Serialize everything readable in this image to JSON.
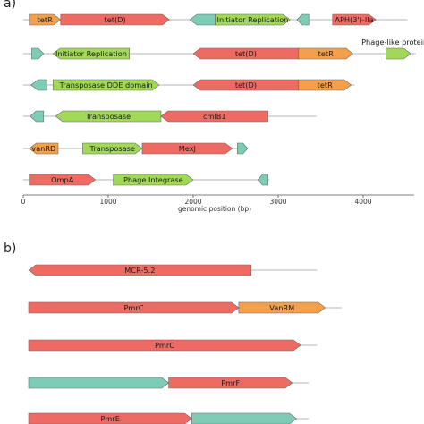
{
  "panels": [
    {
      "label": "a)"
    },
    {
      "label": "b)"
    }
  ],
  "axis": {
    "title": "genomic position (bp)",
    "ticks": [
      0,
      1000,
      2000,
      3000,
      4000
    ]
  },
  "colors": {
    "red": "#ee6b63",
    "orange": "#f4a04b",
    "lightgreen": "#a2d857",
    "teal": "#7dcdb6",
    "line": "#b5b5b5",
    "stroke": "#666666"
  },
  "tracks_a": [
    {
      "end": 4520,
      "genes": [
        {
          "start": 70,
          "end": 440,
          "strand": 1,
          "color": "orange",
          "label": "tetR"
        },
        {
          "start": 440,
          "end": 1720,
          "strand": 1,
          "color": "red",
          "label": "tet(D)"
        },
        {
          "start": 1960,
          "end": 2260,
          "strand": -1,
          "color": "teal",
          "label": ""
        },
        {
          "start": 2260,
          "end": 3140,
          "strand": 1,
          "color": "lightgreen",
          "label": "Initiator Replication"
        },
        {
          "start": 3220,
          "end": 3360,
          "strand": -1,
          "color": "teal",
          "label": ""
        },
        {
          "start": 3640,
          "end": 4150,
          "strand": 1,
          "color": "red",
          "label": "APH(3')-IIa"
        }
      ]
    },
    {
      "end": 4620,
      "genes": [
        {
          "start": 100,
          "end": 240,
          "strand": 1,
          "color": "teal",
          "label": ""
        },
        {
          "start": 350,
          "end": 1250,
          "strand": -1,
          "color": "lightgreen",
          "label": "Initiator Replication"
        },
        {
          "start": 2000,
          "end": 3240,
          "strand": -1,
          "color": "red",
          "label": "tet(D)"
        },
        {
          "start": 3240,
          "end": 3880,
          "strand": 1,
          "color": "orange",
          "label": "tetR"
        },
        {
          "start": 4270,
          "end": 4560,
          "strand": 1,
          "color": "lightgreen",
          "label": ""
        }
      ],
      "note": {
        "text": "Phage-like protein",
        "at": 4370
      }
    },
    {
      "end": 3900,
      "genes": [
        {
          "start": 90,
          "end": 280,
          "strand": -1,
          "color": "teal",
          "label": ""
        },
        {
          "start": 350,
          "end": 1600,
          "strand": 1,
          "color": "lightgreen",
          "label": "Transposase DDE domain"
        },
        {
          "start": 2000,
          "end": 3240,
          "strand": -1,
          "color": "red",
          "label": "tet(D)"
        },
        {
          "start": 3240,
          "end": 3860,
          "strand": 1,
          "color": "orange",
          "label": "tetR"
        }
      ]
    },
    {
      "end": 3450,
      "genes": [
        {
          "start": 80,
          "end": 240,
          "strand": -1,
          "color": "teal",
          "label": ""
        },
        {
          "start": 380,
          "end": 1620,
          "strand": -1,
          "color": "lightgreen",
          "label": "Transposase"
        },
        {
          "start": 1620,
          "end": 2880,
          "strand": -1,
          "color": "red",
          "label": "cmlB1"
        }
      ]
    },
    {
      "end": 2600,
      "genes": [
        {
          "start": 70,
          "end": 410,
          "strand": -1,
          "color": "orange",
          "label": "vanRD"
        },
        {
          "start": 700,
          "end": 1400,
          "strand": 1,
          "color": "lightgreen",
          "label": "Transposase"
        },
        {
          "start": 1400,
          "end": 2460,
          "strand": 1,
          "color": "red",
          "label": "MexJ"
        },
        {
          "start": 2520,
          "end": 2640,
          "strand": 1,
          "color": "teal",
          "label": ""
        }
      ]
    },
    {
      "end": 2900,
      "genes": [
        {
          "start": 70,
          "end": 850,
          "strand": 1,
          "color": "red",
          "label": "OmpA"
        },
        {
          "start": 1060,
          "end": 2000,
          "strand": 1,
          "color": "lightgreen",
          "label": "Phage Integrase"
        },
        {
          "start": 2760,
          "end": 2880,
          "strand": -1,
          "color": "teal",
          "label": ""
        }
      ]
    }
  ],
  "tracks_b": [
    {
      "end": 3500,
      "genes": [
        {
          "start": 0,
          "end": 2700,
          "strand": -1,
          "color": "red",
          "label": "MCR-5.2"
        }
      ]
    },
    {
      "end": 3800,
      "genes": [
        {
          "start": 0,
          "end": 2550,
          "strand": 1,
          "color": "red",
          "label": "PmrC"
        },
        {
          "start": 2550,
          "end": 3600,
          "strand": 1,
          "color": "orange",
          "label": "VanRM"
        }
      ]
    },
    {
      "end": 3500,
      "genes": [
        {
          "start": 0,
          "end": 3300,
          "strand": 1,
          "color": "red",
          "label": "PmrC"
        }
      ]
    },
    {
      "end": 3400,
      "genes": [
        {
          "start": 0,
          "end": 1700,
          "strand": 1,
          "color": "teal",
          "label": ""
        },
        {
          "start": 1700,
          "end": 3200,
          "strand": 1,
          "color": "red",
          "label": "PmrF"
        }
      ]
    },
    {
      "end": 3400,
      "genes": [
        {
          "start": 0,
          "end": 1980,
          "strand": 1,
          "color": "red",
          "label": "PmrE"
        },
        {
          "start": 1980,
          "end": 3250,
          "strand": 1,
          "color": "teal",
          "label": ""
        }
      ]
    }
  ]
}
